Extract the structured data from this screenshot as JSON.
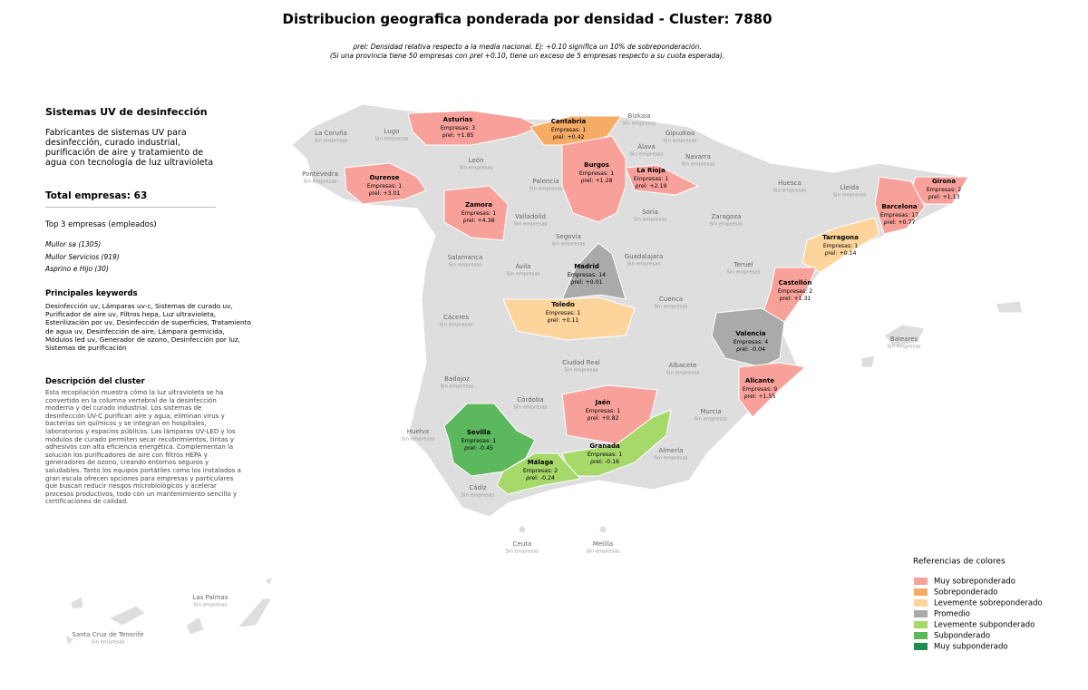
{
  "header": {
    "title": "Distribucion geografica ponderada por densidad - Cluster: 7880",
    "subtitle": [
      "ρrel: Densidad relativa respecto a la media nacional. Ej: +0.10 significa un 10% de sobreponderación.",
      "(Si una provincia tiene 50 empresas con ρrel +0.10, tiene un exceso de 5 empresas respecto a su cuota esperada)."
    ]
  },
  "sidebar": {
    "heading": "Sistemas UV de desinfección",
    "description": "Fabricantes de sistemas UV para desinfección, curado industrial, purificación de aire y tratamiento de agua con tecnología de luz ultravioleta",
    "total": "Total empresas: 63",
    "top_heading": "Top 3 empresas (empleados)",
    "top": [
      "Mullor sa (1305)",
      "Mullor Servicios (919)",
      "Asprino e Hijo (30)"
    ],
    "keywords_heading": "Principales keywords",
    "keywords": "Desinfección uv, Lámparas uv-c, Sistemas de curado uv, Purificador de aire uv, Filtros hepa, Luz ultravioleta, Esterilización por uv, Desinfección de superficies, Tratamiento de agua uv, Desinfección de aire, Lámpara germicida, Módulos led uv, Generador de ozono, Desinfección por luz, Sistemas de purificación",
    "cluster_heading": "Descripción del cluster",
    "cluster_text": "Esta recopilación muestra cómo la luz ultravioleta se ha convertido en la columna vertebral de la desinfección moderna y del curado industrial. Los sistemas de desinfección UV-C purifican aire y agua, eliminan virus y bacterias sin químicos y se integran en hospitales, laboratorios y espacios públicos. Las lámparas UV-LED y los módulos de curado permiten secar recubrimientos, tintas y adhesivos con alta eficiencia energética. Complementan la solución los purificadores de aire con filtros HEPA y generadores de ozono, creando entornos seguros y saludables. Tanto los equipos portátiles como los instalados a gran escala ofrecen opciones para empresas y particulares que buscan reducir riesgos microbiológicos y acelerar procesos productivos, todo con un mantenimiento sencillo y certificaciones de calidad."
  },
  "legend": {
    "title": "Referencias de colores",
    "items": [
      {
        "label": "Muy sobreponderado",
        "color": "#f8a19b"
      },
      {
        "label": "Sobreponderado",
        "color": "#f7ac66"
      },
      {
        "label": "Levemente sobreponderado",
        "color": "#fdd49b"
      },
      {
        "label": "Promedio",
        "color": "#aaaaaa"
      },
      {
        "label": "Levemente subponderado",
        "color": "#a6d86a"
      },
      {
        "label": "Subponderado",
        "color": "#5cb85c"
      },
      {
        "label": "Muy subponderado",
        "color": "#1e8c4e"
      }
    ]
  },
  "map": {
    "provinces": [
      {
        "name": "Asturias",
        "companies": "Empresas: 3",
        "rho": "ρrel: +1.85",
        "category": 0
      },
      {
        "name": "Cantabria",
        "companies": "Empresas: 1",
        "rho": "ρrel: +0.42",
        "category": 1
      },
      {
        "name": "Burgos",
        "companies": "Empresas: 1",
        "rho": "ρrel: +1.28",
        "category": 0
      },
      {
        "name": "La Rioja",
        "companies": "Empresas: 1",
        "rho": "ρrel: +2.19",
        "category": 0
      },
      {
        "name": "Ourense",
        "companies": "Empresas: 1",
        "rho": "ρrel: +3.01",
        "category": 0
      },
      {
        "name": "Zamora",
        "companies": "Empresas: 1",
        "rho": "ρrel: +4.38",
        "category": 0
      },
      {
        "name": "Girona",
        "companies": "Empresas: 2",
        "rho": "ρrel: +1.13",
        "category": 0
      },
      {
        "name": "Barcelona",
        "companies": "Empresas: 17",
        "rho": "ρrel: +0.77",
        "category": 0
      },
      {
        "name": "Tarragona",
        "companies": "Empresas: 1",
        "rho": "ρrel: +0.14",
        "category": 2
      },
      {
        "name": "Madrid",
        "companies": "Empresas: 14",
        "rho": "ρrel: +0.01",
        "category": 3
      },
      {
        "name": "Castellón",
        "companies": "Empresas: 2",
        "rho": "ρrel: +1.31",
        "category": 0
      },
      {
        "name": "Toledo",
        "companies": "Empresas: 1",
        "rho": "ρrel: +0.11",
        "category": 2
      },
      {
        "name": "Valencia",
        "companies": "Empresas: 4",
        "rho": "ρrel: -0.04",
        "category": 3
      },
      {
        "name": "Alicante",
        "companies": "Empresas: 9",
        "rho": "ρrel: +1.55",
        "category": 0
      },
      {
        "name": "Jaén",
        "companies": "Empresas: 1",
        "rho": "ρrel: +0.82",
        "category": 0
      },
      {
        "name": "Sevilla",
        "companies": "Empresas: 1",
        "rho": "ρrel: -0.45",
        "category": 5
      },
      {
        "name": "Granada",
        "companies": "Empresas: 1",
        "rho": "ρrel: -0.16",
        "category": 4
      },
      {
        "name": "Málaga",
        "companies": "Empresas: 2",
        "rho": "ρrel: -0.24",
        "category": 4
      },
      {
        "name": "La Coruña",
        "note": "Sin empresas"
      },
      {
        "name": "Lugo",
        "note": "Sin empresas"
      },
      {
        "name": "Pontevedra",
        "note": "Sin empresas"
      },
      {
        "name": "León",
        "note": "Sin empresas"
      },
      {
        "name": "Palencia",
        "note": "Sin empresas"
      },
      {
        "name": "Valladolid",
        "note": "Sin empresas"
      },
      {
        "name": "Segovia",
        "note": "Sin empresas"
      },
      {
        "name": "Soria",
        "note": "Sin empresas"
      },
      {
        "name": "Zaragoza",
        "note": "Sin empresas"
      },
      {
        "name": "Huesca",
        "note": "Sin empresas"
      },
      {
        "name": "Lleida",
        "note": "Sin empresas"
      },
      {
        "name": "Álava",
        "note": "Sin empresas"
      },
      {
        "name": "Bizkaia",
        "note": "Sin empresas"
      },
      {
        "name": "Gipuzkoa",
        "note": "Sin empresas"
      },
      {
        "name": "Navarra",
        "note": "Sin empresas"
      },
      {
        "name": "Salamanca",
        "note": "Sin empresas"
      },
      {
        "name": "Ávila",
        "note": "Sin empresas"
      },
      {
        "name": "Guadalajara",
        "note": "Sin empresas"
      },
      {
        "name": "Teruel",
        "note": "Sin empresas"
      },
      {
        "name": "Cáceres",
        "note": "Sin empresas"
      },
      {
        "name": "Cuenca",
        "note": "Sin empresas"
      },
      {
        "name": "Badajoz",
        "note": "Sin empresas"
      },
      {
        "name": "Ciudad Real",
        "note": "Sin empresas"
      },
      {
        "name": "Albacete",
        "note": "Sin empresas"
      },
      {
        "name": "Córdoba",
        "note": "Sin empresas"
      },
      {
        "name": "Murcia",
        "note": "Sin empresas"
      },
      {
        "name": "Huelva",
        "note": "Sin empresas"
      },
      {
        "name": "Almería",
        "note": "Sin empresas"
      },
      {
        "name": "Cádiz",
        "note": "Sin empresas"
      },
      {
        "name": "Baleares",
        "note": "Sin empresas"
      },
      {
        "name": "Ceuta",
        "note": "Sin empresas"
      },
      {
        "name": "Melilla",
        "note": "Sin empresas"
      },
      {
        "name": "Las Palmas",
        "note": "Sin empresas"
      },
      {
        "name": "Santa Cruz de Tenerife",
        "note": "Sin empresas"
      }
    ]
  }
}
